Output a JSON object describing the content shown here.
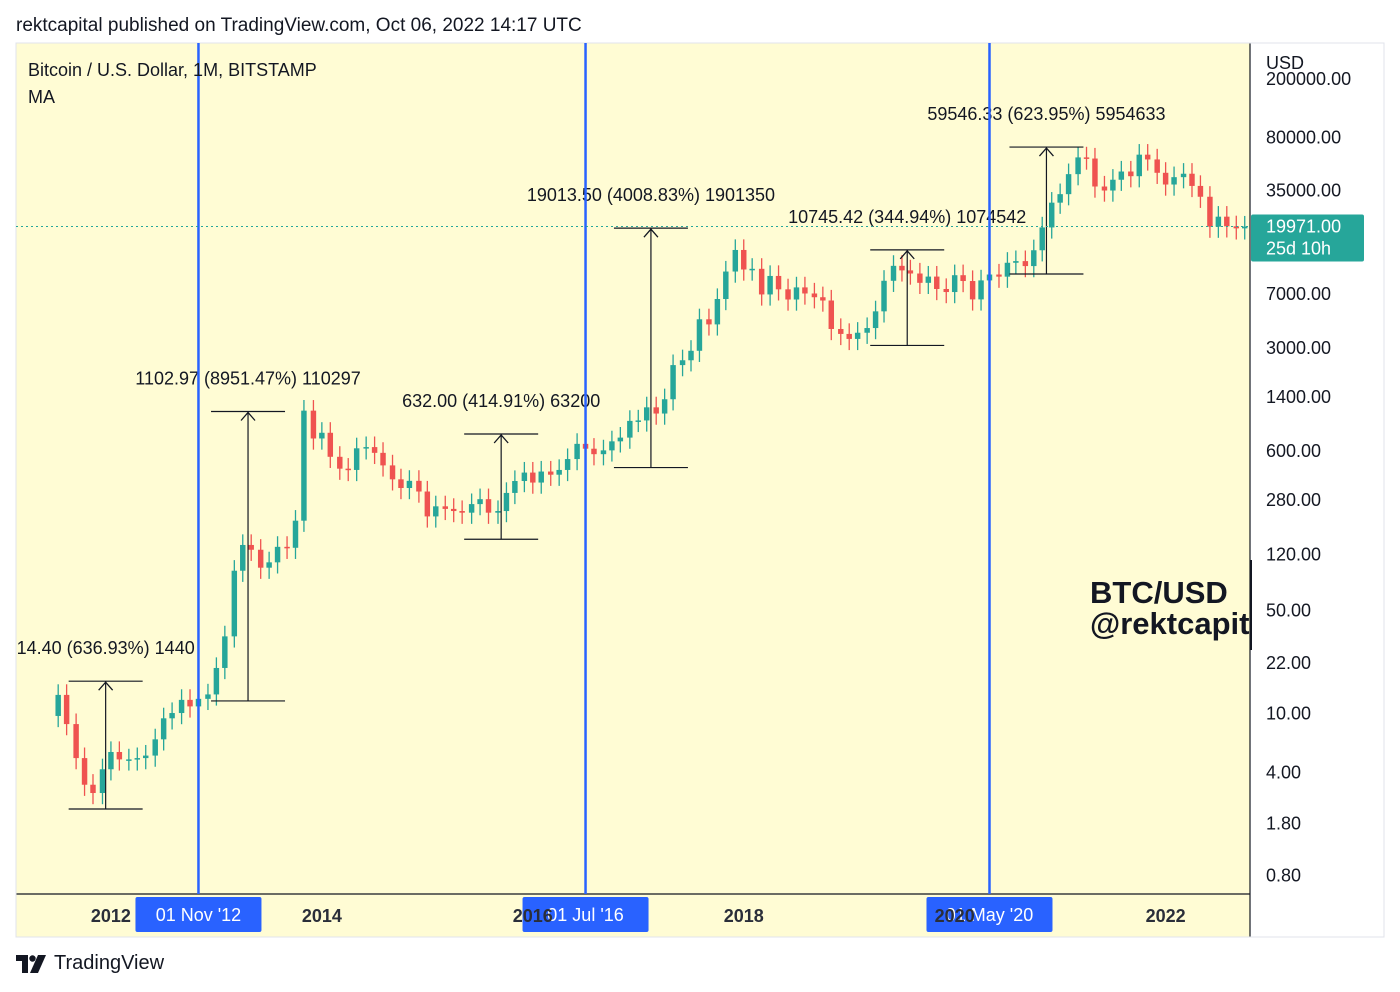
{
  "header": {
    "publisher_text": "rektcapital published on TradingView.com, Oct 06, 2022 14:17 UTC"
  },
  "legend": {
    "symbol_line": "Bitcoin / U.S. Dollar, 1M, BITSTAMP",
    "indicator": "MA"
  },
  "footer": {
    "brand": "TradingView"
  },
  "watermark": {
    "line1": "BTC/USD",
    "line2": "@rektcapit"
  },
  "colors": {
    "plot_bg": "#fffcd4",
    "up": "#26a69a",
    "down": "#ef5350",
    "halving_line": "#2962ff",
    "date_badge": "#2962ff",
    "price_badge": "#26a69a",
    "axis_text": "#131722"
  },
  "chart_data": {
    "type": "candlestick",
    "y_scale": "log",
    "y_unit": "USD",
    "y_ticks": [
      "200000.00",
      "80000.00",
      "35000.00",
      "7000.00",
      "3000.00",
      "1400.00",
      "600.00",
      "280.00",
      "120.00",
      "50.00",
      "22.00",
      "10.00",
      "4.00",
      "1.80",
      "0.80"
    ],
    "y_tick_values": [
      200000,
      80000,
      35000,
      7000,
      3000,
      1400,
      600,
      280,
      120,
      50,
      22,
      10,
      4,
      1.8,
      0.8
    ],
    "ylim": [
      0.6,
      350000
    ],
    "x_ticks": [
      "2012",
      "2014",
      "2016",
      "2018",
      "2020",
      "2022"
    ],
    "x_tick_years": [
      2012,
      2014,
      2016,
      2018,
      2020,
      2022
    ],
    "xlim": [
      2011.1,
      2022.8
    ],
    "current_price": {
      "value": 19971.0,
      "label": "19971.00",
      "countdown": "25d 10h"
    },
    "halving_markers": [
      {
        "date_label": "01 Nov '12",
        "year": 2012.83
      },
      {
        "date_label": "01 Jul '16",
        "year": 2016.5
      },
      {
        "date_label": "01 May '20",
        "year": 2020.33
      }
    ],
    "measurements": [
      {
        "label": "14.40 (636.93%) 1440",
        "from": 2.26,
        "to": 16.6,
        "x": 2011.95
      },
      {
        "label": "1102.97 (8951.47%) 110297",
        "from": 12.2,
        "to": 1115,
        "x": 2013.3
      },
      {
        "label": "632.00 (414.91%) 63200",
        "from": 152,
        "to": 785,
        "x": 2015.7
      },
      {
        "label": "19013.50 (4008.83%) 1901350",
        "from": 465,
        "to": 19480,
        "x": 2017.12
      },
      {
        "label": "10745.42 (344.94%) 1074542",
        "from": 3125,
        "to": 13880,
        "x": 2019.55
      },
      {
        "label": "59546.33 (623.95%) 5954633",
        "from": 9530,
        "to": 69000,
        "x": 2020.87
      }
    ],
    "candles_monthly_close": [
      [
        2011.5,
        13.4
      ],
      [
        2011.58,
        8.5
      ],
      [
        2011.67,
        5.0
      ],
      [
        2011.75,
        3.3
      ],
      [
        2011.83,
        2.9
      ],
      [
        2011.92,
        4.2
      ],
      [
        2012.0,
        5.5
      ],
      [
        2012.08,
        4.9
      ],
      [
        2012.17,
        4.9
      ],
      [
        2012.25,
        5.0
      ],
      [
        2012.33,
        5.2
      ],
      [
        2012.42,
        6.7
      ],
      [
        2012.5,
        9.3
      ],
      [
        2012.58,
        10.1
      ],
      [
        2012.67,
        12.4
      ],
      [
        2012.75,
        11.2
      ],
      [
        2012.83,
        12.6
      ],
      [
        2012.92,
        13.5
      ],
      [
        2013.0,
        20.4
      ],
      [
        2013.08,
        33.4
      ],
      [
        2013.17,
        93.0
      ],
      [
        2013.25,
        139.0
      ],
      [
        2013.33,
        129.0
      ],
      [
        2013.42,
        97.5
      ],
      [
        2013.5,
        106.0
      ],
      [
        2013.58,
        135.0
      ],
      [
        2013.67,
        133.0
      ],
      [
        2013.75,
        203.0
      ],
      [
        2013.83,
        1130.0
      ],
      [
        2013.92,
        732.0
      ],
      [
        2014.0,
        800.0
      ],
      [
        2014.08,
        550.0
      ],
      [
        2014.17,
        457.0
      ],
      [
        2014.25,
        448.0
      ],
      [
        2014.33,
        628.0
      ],
      [
        2014.42,
        640.0
      ],
      [
        2014.5,
        585.0
      ],
      [
        2014.58,
        481.0
      ],
      [
        2014.67,
        387.0
      ],
      [
        2014.75,
        338.0
      ],
      [
        2014.83,
        378.0
      ],
      [
        2014.92,
        320.0
      ],
      [
        2015.0,
        217.0
      ],
      [
        2015.08,
        254.0
      ],
      [
        2015.17,
        244.0
      ],
      [
        2015.25,
        236.0
      ],
      [
        2015.33,
        230.0
      ],
      [
        2015.42,
        263.0
      ],
      [
        2015.5,
        284.0
      ],
      [
        2015.58,
        230.0
      ],
      [
        2015.67,
        236.0
      ],
      [
        2015.75,
        313.0
      ],
      [
        2015.83,
        377.0
      ],
      [
        2015.92,
        430.0
      ],
      [
        2016.0,
        368.0
      ],
      [
        2016.08,
        437.0
      ],
      [
        2016.17,
        416.0
      ],
      [
        2016.25,
        448.0
      ],
      [
        2016.33,
        531.0
      ],
      [
        2016.42,
        673.0
      ],
      [
        2016.5,
        624.0
      ],
      [
        2016.58,
        573.0
      ],
      [
        2016.67,
        608.0
      ],
      [
        2016.75,
        700.0
      ],
      [
        2016.83,
        742.0
      ],
      [
        2016.92,
        963.0
      ],
      [
        2017.0,
        970.0
      ],
      [
        2017.08,
        1190.0
      ],
      [
        2017.17,
        1080.0
      ],
      [
        2017.25,
        1350.0
      ],
      [
        2017.33,
        2300.0
      ],
      [
        2017.42,
        2480.0
      ],
      [
        2017.5,
        2875.0
      ],
      [
        2017.58,
        4700.0
      ],
      [
        2017.67,
        4340.0
      ],
      [
        2017.75,
        6450.0
      ],
      [
        2017.83,
        9900.0
      ],
      [
        2017.92,
        13860.0
      ],
      [
        2018.0,
        10220.0
      ],
      [
        2018.08,
        10330.0
      ],
      [
        2018.17,
        6925.0
      ],
      [
        2018.25,
        9240.0
      ],
      [
        2018.33,
        7500.0
      ],
      [
        2018.42,
        6400.0
      ],
      [
        2018.5,
        7730.0
      ],
      [
        2018.58,
        7030.0
      ],
      [
        2018.67,
        6630.0
      ],
      [
        2018.75,
        6300.0
      ],
      [
        2018.83,
        4040.0
      ],
      [
        2018.92,
        3740.0
      ],
      [
        2019.0,
        3460.0
      ],
      [
        2019.08,
        3810.0
      ],
      [
        2019.17,
        4100.0
      ],
      [
        2019.25,
        5320.0
      ],
      [
        2019.33,
        8570.0
      ],
      [
        2019.42,
        10820.0
      ],
      [
        2019.5,
        10080.0
      ],
      [
        2019.58,
        9600.0
      ],
      [
        2019.67,
        8300.0
      ],
      [
        2019.75,
        9150.0
      ],
      [
        2019.83,
        7540.0
      ],
      [
        2019.92,
        7190.0
      ],
      [
        2020.0,
        9350.0
      ],
      [
        2020.08,
        8540.0
      ],
      [
        2020.17,
        6410.0
      ],
      [
        2020.25,
        8620.0
      ],
      [
        2020.33,
        9450.0
      ],
      [
        2020.42,
        9140.0
      ],
      [
        2020.5,
        11350.0
      ],
      [
        2020.58,
        11650.0
      ],
      [
        2020.67,
        10780.0
      ],
      [
        2020.75,
        13800.0
      ],
      [
        2020.83,
        19700.0
      ],
      [
        2020.92,
        28990.0
      ],
      [
        2021.0,
        33110.0
      ],
      [
        2021.08,
        45240.0
      ],
      [
        2021.17,
        58740.0
      ],
      [
        2021.25,
        57720.0
      ],
      [
        2021.33,
        37300.0
      ],
      [
        2021.42,
        35040.0
      ],
      [
        2021.5,
        41460.0
      ],
      [
        2021.58,
        47130.0
      ],
      [
        2021.67,
        43820.0
      ],
      [
        2021.75,
        61300.0
      ],
      [
        2021.83,
        56900.0
      ],
      [
        2021.92,
        46200.0
      ],
      [
        2022.0,
        38480.0
      ],
      [
        2022.08,
        43160.0
      ],
      [
        2022.17,
        45530.0
      ],
      [
        2022.25,
        37640.0
      ],
      [
        2022.33,
        31790.0
      ],
      [
        2022.42,
        19940.0
      ],
      [
        2022.5,
        23300.0
      ],
      [
        2022.58,
        20050.0
      ],
      [
        2022.67,
        19420.0
      ],
      [
        2022.75,
        19971.0
      ]
    ]
  }
}
